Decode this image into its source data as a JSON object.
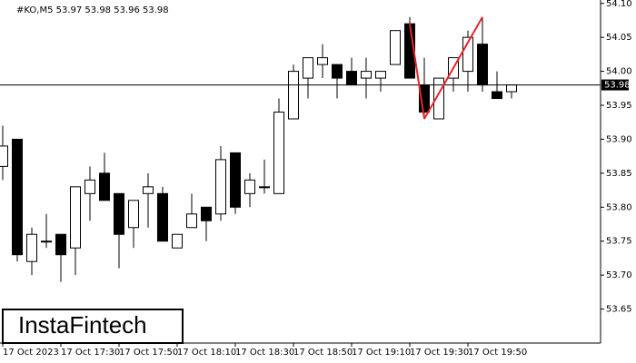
{
  "chart_data": {
    "type": "candlestick",
    "ohlc_label": "#KO,M5 53.97 53.98 53.96 53.98",
    "logo": "InstaFintech",
    "categories": [
      "17 Oct 2023",
      null,
      null,
      null,
      "17 Oct 17:30",
      null,
      null,
      null,
      "17 Oct 17:50",
      null,
      null,
      null,
      "17 Oct 18:10",
      null,
      null,
      null,
      "17 Oct 18:30",
      null,
      null,
      null,
      "17 Oct 18:50",
      null,
      null,
      null,
      "17 Oct 19:10",
      null,
      null,
      null,
      "17 Oct 19:30",
      null,
      null,
      null,
      "17 Oct 19:50",
      null,
      null,
      null
    ],
    "open": [
      53.86,
      53.9,
      53.72,
      53.75,
      53.76,
      53.74,
      53.82,
      53.85,
      53.82,
      53.77,
      53.82,
      53.82,
      53.74,
      53.77,
      53.8,
      53.79,
      53.88,
      53.82,
      53.83,
      53.82,
      53.93,
      53.99,
      54.01,
      54.01,
      54.0,
      53.99,
      53.99,
      54.01,
      54.07,
      53.98,
      53.93,
      53.99,
      54.0,
      54.04,
      53.97,
      53.97
    ],
    "high": [
      53.92,
      53.9,
      53.77,
      53.79,
      53.76,
      53.83,
      53.86,
      53.88,
      53.82,
      53.81,
      53.85,
      53.83,
      53.76,
      53.82,
      53.8,
      53.89,
      53.88,
      53.85,
      53.87,
      53.96,
      54.01,
      54.02,
      54.04,
      54.01,
      54.02,
      54.02,
      54.0,
      54.06,
      54.08,
      54.02,
      53.99,
      54.02,
      54.06,
      54.08,
      54.0,
      53.98
    ],
    "low": [
      53.84,
      53.72,
      53.7,
      53.74,
      53.69,
      53.7,
      53.78,
      53.81,
      53.71,
      53.74,
      53.77,
      53.75,
      53.74,
      53.77,
      53.75,
      53.78,
      53.79,
      53.8,
      53.82,
      53.82,
      53.93,
      53.96,
      53.99,
      53.96,
      53.98,
      53.96,
      53.97,
      54.01,
      53.99,
      53.93,
      53.93,
      53.97,
      53.97,
      53.97,
      53.96,
      53.96
    ],
    "close": [
      53.89,
      53.73,
      53.76,
      53.75,
      53.73,
      53.83,
      53.84,
      53.81,
      53.76,
      53.81,
      53.83,
      53.75,
      53.76,
      53.79,
      53.78,
      53.87,
      53.8,
      53.84,
      53.83,
      53.94,
      54.0,
      54.02,
      54.02,
      53.99,
      53.98,
      54.0,
      54.0,
      54.06,
      53.99,
      53.94,
      53.99,
      54.02,
      54.05,
      53.98,
      53.96,
      53.98
    ],
    "up_color": "#ffffff",
    "down_color": "#000000",
    "pattern": {
      "color": "#e8242a",
      "values": [
        null,
        null,
        null,
        null,
        null,
        null,
        null,
        null,
        null,
        null,
        null,
        null,
        null,
        null,
        null,
        null,
        null,
        null,
        null,
        null,
        null,
        null,
        null,
        null,
        null,
        null,
        null,
        null,
        54.07,
        53.93,
        null,
        null,
        null,
        54.08,
        null,
        null
      ]
    },
    "current_price": 53.98,
    "ylim": [
      53.6,
      54.105
    ],
    "yticks": [
      {
        "value": 54.1,
        "label": "54.10"
      },
      54.05,
      {
        "value": 54,
        "label": "54.00"
      },
      53.95,
      {
        "value": 53.9,
        "label": "53.90"
      },
      53.85,
      {
        "value": 53.8,
        "label": "53.80"
      },
      53.75,
      {
        "value": 53.7,
        "label": "53.70"
      },
      53.65
    ]
  }
}
